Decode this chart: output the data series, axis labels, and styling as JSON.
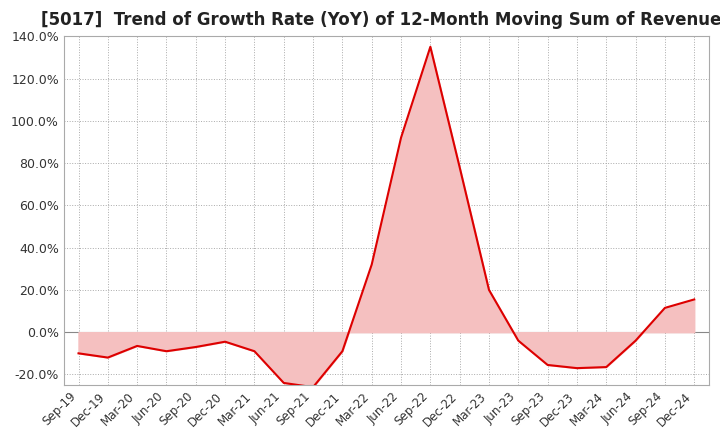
{
  "title": "[5017]  Trend of Growth Rate (YoY) of 12-Month Moving Sum of Revenues",
  "title_fontsize": 12,
  "background_color": "#ffffff",
  "grid_color": "#aaaaaa",
  "line_color": "#dd0000",
  "fill_color": "#f5c0c0",
  "ylim": [
    -0.25,
    0.148
  ],
  "yticks": [
    -0.2,
    0.0,
    0.2,
    0.4,
    0.6,
    0.8,
    1.0,
    1.2,
    1.4
  ],
  "ytick_labels": [
    "-20.0%",
    "0.0%",
    "20.0%",
    "40.0%",
    "60.0%",
    "80.0%",
    "100.0%",
    "120.0%",
    "140.0%"
  ],
  "x_labels": [
    "Sep-19",
    "Dec-19",
    "Mar-20",
    "Jun-20",
    "Sep-20",
    "Dec-20",
    "Mar-21",
    "Jun-21",
    "Sep-21",
    "Dec-21",
    "Mar-22",
    "Jun-22",
    "Sep-22",
    "Dec-22",
    "Mar-23",
    "Jun-23",
    "Sep-23",
    "Dec-23",
    "Mar-24",
    "Jun-24",
    "Sep-24",
    "Dec-24"
  ],
  "values": [
    -0.1,
    -0.12,
    -0.065,
    -0.09,
    -0.07,
    -0.045,
    -0.09,
    -0.24,
    -0.26,
    -0.09,
    0.32,
    0.92,
    1.35,
    0.78,
    0.2,
    -0.04,
    -0.155,
    -0.17,
    -0.165,
    -0.04,
    0.115,
    0.155
  ]
}
